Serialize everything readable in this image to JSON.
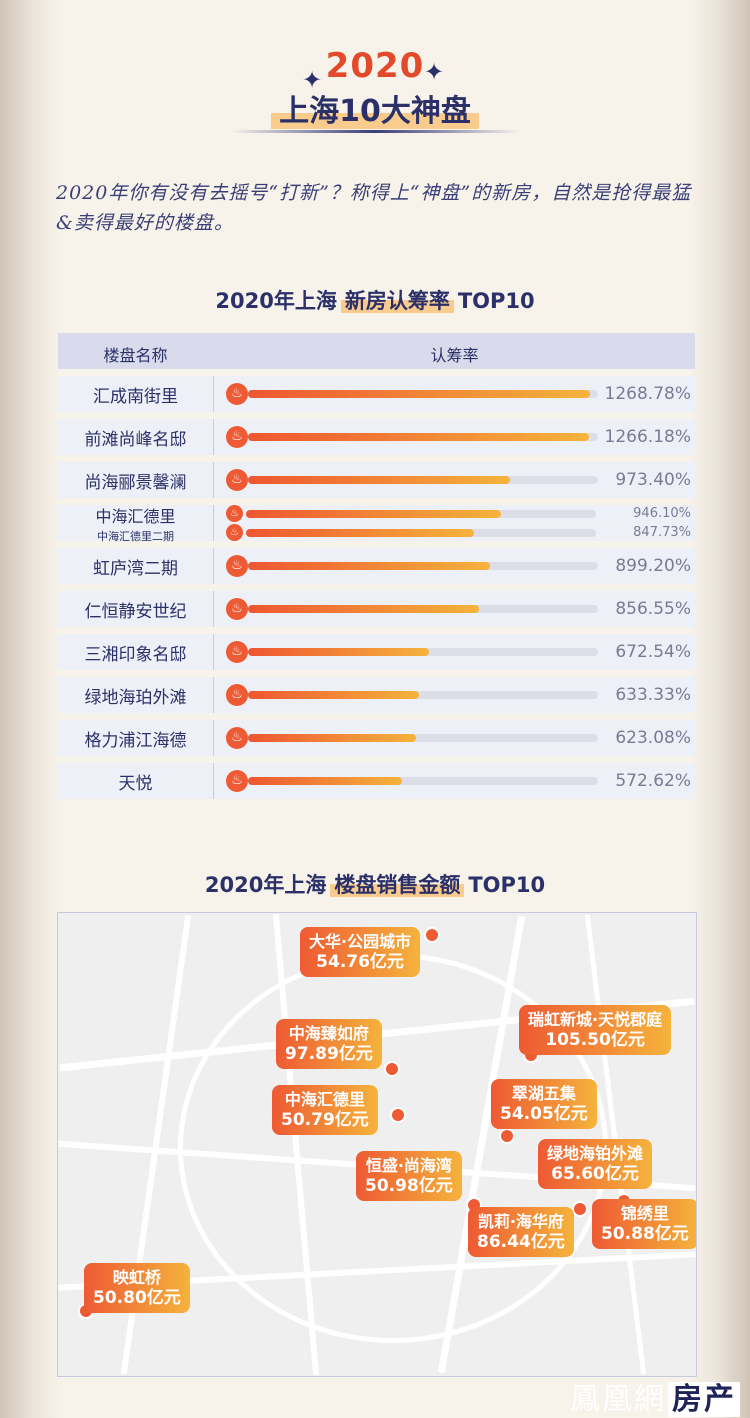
{
  "header": {
    "year": "2020",
    "title": "上海10大神盘",
    "sparkle": "✦"
  },
  "intro": "2020年你有没有去摇号“打新”？称得上“神盘”的新房，自然是抢得最猛&卖得最好的楼盘。",
  "section1": {
    "title_pre": "2020年上海",
    "title_hl": "新房认筹率",
    "title_post": "TOP10"
  },
  "section2": {
    "title_pre": "2020年上海",
    "title_hl": "楼盘销售金额",
    "title_post": "TOP10"
  },
  "chart_data": [
    {
      "type": "bar",
      "columns": [
        "楼盘名称",
        "认筹率"
      ],
      "rows": [
        {
          "name": "汇成南街里",
          "bars": [
            {
              "label": "1268.78%",
              "value": 1268.78
            }
          ]
        },
        {
          "name": "前滩尚峰名邸",
          "bars": [
            {
              "label": "1266.18%",
              "value": 1266.18
            }
          ]
        },
        {
          "name": "尚海郦景馨澜",
          "bars": [
            {
              "label": "973.40%",
              "value": 973.4
            }
          ]
        },
        {
          "name": "中海汇德里",
          "sub": "中海汇德里二期",
          "bars": [
            {
              "label": "946.10%",
              "value": 946.1
            },
            {
              "label": "847.73%",
              "value": 847.73
            }
          ]
        },
        {
          "name": "虹庐湾二期",
          "bars": [
            {
              "label": "899.20%",
              "value": 899.2
            }
          ]
        },
        {
          "name": "仁恒静安世纪",
          "bars": [
            {
              "label": "856.55%",
              "value": 856.55
            }
          ]
        },
        {
          "name": "三湘印象名邸",
          "bars": [
            {
              "label": "672.54%",
              "value": 672.54
            }
          ]
        },
        {
          "name": "绿地海珀外滩",
          "bars": [
            {
              "label": "633.33%",
              "value": 633.33
            }
          ]
        },
        {
          "name": "格力浦江海德",
          "bars": [
            {
              "label": "623.08%",
              "value": 623.08
            }
          ]
        },
        {
          "name": "天悦",
          "bars": [
            {
              "label": "572.62%",
              "value": 572.62
            }
          ]
        }
      ]
    },
    {
      "type": "map",
      "places": [
        {
          "name": "大华·公园城市",
          "amount": "54.76亿元"
        },
        {
          "name": "中海臻如府",
          "amount": "97.89亿元"
        },
        {
          "name": "瑞虹新城·天悦郡庭",
          "amount": "105.50亿元"
        },
        {
          "name": "中海汇德里",
          "amount": "50.79亿元"
        },
        {
          "name": "翠湖五集",
          "amount": "54.05亿元"
        },
        {
          "name": "绿地海铂外滩",
          "amount": "65.60亿元"
        },
        {
          "name": "恒盛·尚海湾",
          "amount": "50.98亿元"
        },
        {
          "name": "凯莉·海华府",
          "amount": "86.44亿元"
        },
        {
          "name": "锦绣里",
          "amount": "50.88亿元"
        },
        {
          "name": "映虹桥",
          "amount": "50.80亿元"
        }
      ]
    }
  ],
  "logo": {
    "text": "鳳凰網",
    "suffix": "房产"
  },
  "colors": {
    "navy": "#2b3168",
    "orange": "#ee5a33",
    "gold": "#f5b33c"
  }
}
